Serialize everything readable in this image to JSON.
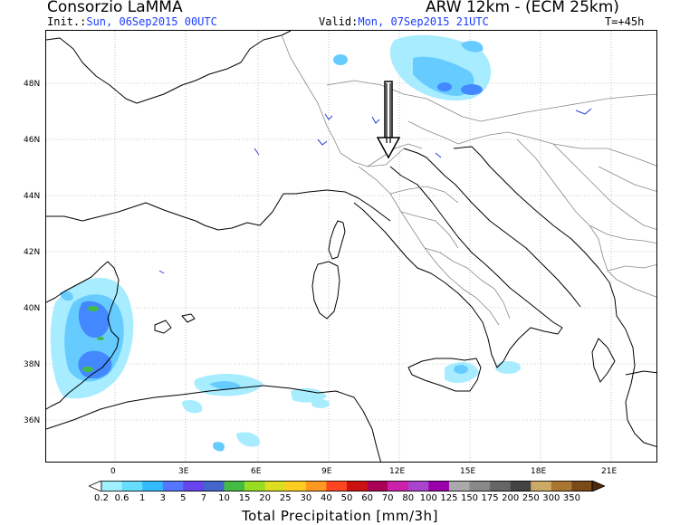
{
  "header": {
    "title_left": "Consorzio LaMMA",
    "title_right": "ARW 12km - (ECM 25km)",
    "init_label": "Init.:",
    "init_value": "Sun, 06Sep2015 00UTC",
    "valid_label": "Valid:",
    "valid_value": "Mon, 07Sep2015 21UTC",
    "forecast_step": "T=+45h"
  },
  "axes": {
    "lat_labels": [
      "48N",
      "46N",
      "44N",
      "42N",
      "40N",
      "38N",
      "36N"
    ],
    "lon_labels": [
      "0",
      "3E",
      "6E",
      "9E",
      "12E",
      "15E",
      "18E",
      "21E"
    ]
  },
  "colorbar": {
    "labels": [
      "0.2",
      "0.6",
      "1",
      "3",
      "5",
      "7",
      "10",
      "15",
      "20",
      "25",
      "30",
      "40",
      "50",
      "60",
      "70",
      "80",
      "100",
      "125",
      "150",
      "175",
      "200",
      "250",
      "300",
      "350"
    ],
    "colors": [
      "#ffffff",
      "#a0f0ff",
      "#66ddff",
      "#33bbff",
      "#5577ff",
      "#6644ee",
      "#4466cc",
      "#44bb44",
      "#99dd22",
      "#dddd22",
      "#ffcc22",
      "#ff9922",
      "#ff4422",
      "#cc1111",
      "#aa0055",
      "#cc22aa",
      "#aa44cc",
      "#9900aa",
      "#aaaaaa",
      "#888888",
      "#666666",
      "#444444",
      "#ccaa66",
      "#aa7733",
      "#7a4a18",
      "#4a2a08"
    ],
    "title": "Total Precipitation [mm/3h]"
  },
  "map": {
    "arrow_icon": "down-arrow-icon",
    "precip_colors": {
      "light": "#a8ecff",
      "mid": "#66ccff",
      "strong": "#4488ff",
      "heavy": "#5a66e0",
      "peak": "#44bb44"
    }
  }
}
